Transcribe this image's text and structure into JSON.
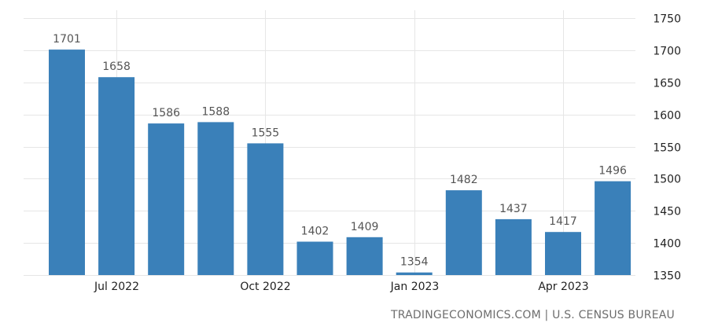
{
  "chart_data": {
    "type": "bar",
    "categories": [
      "Jun 2022",
      "Jul 2022",
      "Aug 2022",
      "Sep 2022",
      "Oct 2022",
      "Nov 2022",
      "Dec 2022",
      "Jan 2023",
      "Feb 2023",
      "Mar 2023",
      "Apr 2023",
      "May 2023"
    ],
    "values": [
      1701,
      1658,
      1586,
      1588,
      1555,
      1402,
      1409,
      1354,
      1482,
      1437,
      1417,
      1496
    ],
    "data_labels": [
      "1701",
      "1658",
      "1586",
      "1588",
      "1555",
      "1402",
      "1409",
      "1354",
      "1482",
      "1437",
      "1417",
      "1496"
    ],
    "ylim": [
      1350,
      1750
    ],
    "y_ticks": [
      "1350",
      "1400",
      "1450",
      "1500",
      "1550",
      "1600",
      "1650",
      "1700",
      "1750"
    ],
    "x_ticks": [
      {
        "category": "Jul 2022",
        "label": "Jul 2022"
      },
      {
        "category": "Oct 2022",
        "label": "Oct 2022"
      },
      {
        "category": "Jan 2023",
        "label": "Jan 2023"
      },
      {
        "category": "Apr 2023",
        "label": "Apr 2023"
      }
    ],
    "y_axis_side": "right",
    "grid": true,
    "bar_color": "#3a80b9",
    "title": "",
    "xlabel": "",
    "ylabel": ""
  },
  "source_text": "TRADINGECONOMICS.COM | U.S. CENSUS BUREAU"
}
